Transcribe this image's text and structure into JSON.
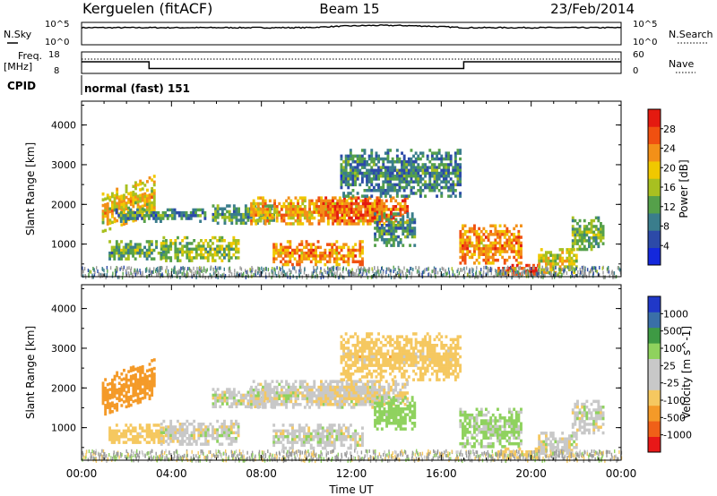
{
  "header": {
    "station": "Kerguelen (fitACF)",
    "beam": "Beam 15",
    "date": "23/Feb/2014"
  },
  "noise_panel": {
    "left_label": "N.Sky",
    "right_label": "N.Search",
    "left_ticks": [
      "10^5",
      "10^0"
    ],
    "right_ticks": [
      "10^5",
      "10^0"
    ]
  },
  "freq_panel": {
    "left_label_1": "Freq.",
    "left_label_2": "[MHz]",
    "right_label": "Nave",
    "left_ticks": [
      "18",
      "8"
    ],
    "right_ticks": [
      "60",
      "0"
    ],
    "freq_mhz": [
      {
        "t": 0,
        "f": 13.4
      },
      {
        "t": 3.0,
        "f": 13.4
      },
      {
        "t": 3.0,
        "f": 10.3
      },
      {
        "t": 17.0,
        "f": 10.3
      },
      {
        "t": 17.0,
        "f": 13.4
      },
      {
        "t": 24,
        "f": 13.4
      }
    ]
  },
  "cpid": {
    "label": "CPID",
    "value": "normal (fast) 151"
  },
  "colors": {
    "power_scale": [
      "#1428dc",
      "#2c4aa8",
      "#3a7d8c",
      "#55a04a",
      "#a8c020",
      "#f0c800",
      "#f39018",
      "#f05010",
      "#e41a10"
    ],
    "velocity_scale": [
      "#e81818",
      "#f06018",
      "#f49a28",
      "#f5c860",
      "#c8c8c8",
      "#c8c8c8",
      "#8fd25e",
      "#3e9a44",
      "#3a6fa8",
      "#2038c8"
    ],
    "velocity_band": [
      "#e81818",
      "#f06018",
      "#f49a28",
      "#f5c860",
      "#c8c8c8",
      "#c8c8c8",
      "#8fd25e",
      "#3e9a44",
      "#3a6fa8",
      "#2038c8"
    ],
    "ground": "#9a9a9a"
  },
  "chart_data": [
    {
      "type": "heatmap",
      "title": "",
      "xlabel": "Time UT",
      "ylabel": "Slant Range [km]",
      "xlim": [
        "00:00",
        "00:00"
      ],
      "ylim": [
        180,
        4600
      ],
      "x_ticks": [
        "00:00",
        "04:00",
        "08:00",
        "12:00",
        "16:00",
        "20:00",
        "00:00"
      ],
      "y_ticks": [
        "1000",
        "2000",
        "3000",
        "4000"
      ],
      "colorbar": {
        "label": "Power [dB]",
        "ticks": [
          "4",
          "8",
          "12",
          "16",
          "20",
          "24",
          "28"
        ],
        "range": [
          0,
          30
        ]
      },
      "regions": [
        {
          "t0": 0.9,
          "t1": 3.2,
          "r0": 1300,
          "r1": 2300,
          "value": 18,
          "slope": 450
        },
        {
          "t0": 1.2,
          "t1": 3.6,
          "r0": 600,
          "r1": 1100,
          "value": 12
        },
        {
          "t0": 1.5,
          "t1": 5.5,
          "r0": 1600,
          "r1": 1900,
          "value": 9
        },
        {
          "t0": 3.5,
          "t1": 7.0,
          "r0": 600,
          "r1": 1200,
          "value": 14
        },
        {
          "t0": 5.8,
          "t1": 8.5,
          "r0": 1500,
          "r1": 2000,
          "value": 11
        },
        {
          "t0": 7.5,
          "t1": 13.5,
          "r0": 1500,
          "r1": 2200,
          "value": 20
        },
        {
          "t0": 8.5,
          "t1": 12.5,
          "r0": 500,
          "r1": 1100,
          "value": 22
        },
        {
          "t0": 10.5,
          "t1": 14.5,
          "r0": 1600,
          "r1": 2200,
          "value": 24
        },
        {
          "t0": 11.5,
          "t1": 16.8,
          "r0": 2200,
          "r1": 3400,
          "value": 9
        },
        {
          "t0": 13.0,
          "t1": 14.8,
          "r0": 1000,
          "r1": 1800,
          "value": 10
        },
        {
          "t0": 16.8,
          "t1": 19.5,
          "r0": 500,
          "r1": 1500,
          "value": 22
        },
        {
          "t0": 18.5,
          "t1": 20.3,
          "r0": 250,
          "r1": 500,
          "value": 26
        },
        {
          "t0": 20.3,
          "t1": 22.0,
          "r0": 300,
          "r1": 900,
          "value": 17
        },
        {
          "t0": 21.8,
          "t1": 23.2,
          "r0": 900,
          "r1": 1700,
          "value": 12
        }
      ]
    },
    {
      "type": "heatmap",
      "title": "",
      "xlabel": "Time UT",
      "ylabel": "Slant Range [km]",
      "xlim": [
        "00:00",
        "00:00"
      ],
      "ylim": [
        180,
        4600
      ],
      "x_ticks": [
        "00:00",
        "04:00",
        "08:00",
        "12:00",
        "16:00",
        "20:00",
        "00:00"
      ],
      "y_ticks": [
        "1000",
        "2000",
        "3000",
        "4000"
      ],
      "colorbar": {
        "label": "Velocity [m s^-1]",
        "ticks": [
          "-1000",
          "-500",
          "-100",
          "-25",
          "25",
          "100",
          "500",
          "1000"
        ]
      },
      "regions": [
        {
          "t0": 0.9,
          "t1": 3.2,
          "r0": 1300,
          "r1": 2300,
          "value": -300,
          "slope": 450
        },
        {
          "t0": 1.2,
          "t1": 3.6,
          "r0": 600,
          "r1": 1100,
          "value": -60
        },
        {
          "t0": 3.5,
          "t1": 7.0,
          "r0": 600,
          "r1": 1200,
          "value": 0
        },
        {
          "t0": 5.8,
          "t1": 8.5,
          "r0": 1500,
          "r1": 2000,
          "value": 0
        },
        {
          "t0": 7.5,
          "t1": 13.5,
          "r0": 1500,
          "r1": 2200,
          "value": 0
        },
        {
          "t0": 8.5,
          "t1": 12.5,
          "r0": 500,
          "r1": 1100,
          "value": 0
        },
        {
          "t0": 10.5,
          "t1": 14.5,
          "r0": 1600,
          "r1": 2200,
          "value": -20
        },
        {
          "t0": 11.5,
          "t1": 16.8,
          "r0": 2200,
          "r1": 3400,
          "value": -60
        },
        {
          "t0": 13.0,
          "t1": 14.8,
          "r0": 1000,
          "r1": 1800,
          "value": 60
        },
        {
          "t0": 16.8,
          "t1": 19.5,
          "r0": 500,
          "r1": 1500,
          "value": 40
        },
        {
          "t0": 18.5,
          "t1": 20.3,
          "r0": 250,
          "r1": 500,
          "value": -60
        },
        {
          "t0": 20.3,
          "t1": 22.0,
          "r0": 300,
          "r1": 900,
          "value": 0
        },
        {
          "t0": 21.8,
          "t1": 23.2,
          "r0": 900,
          "r1": 1700,
          "value": 0
        }
      ]
    }
  ]
}
